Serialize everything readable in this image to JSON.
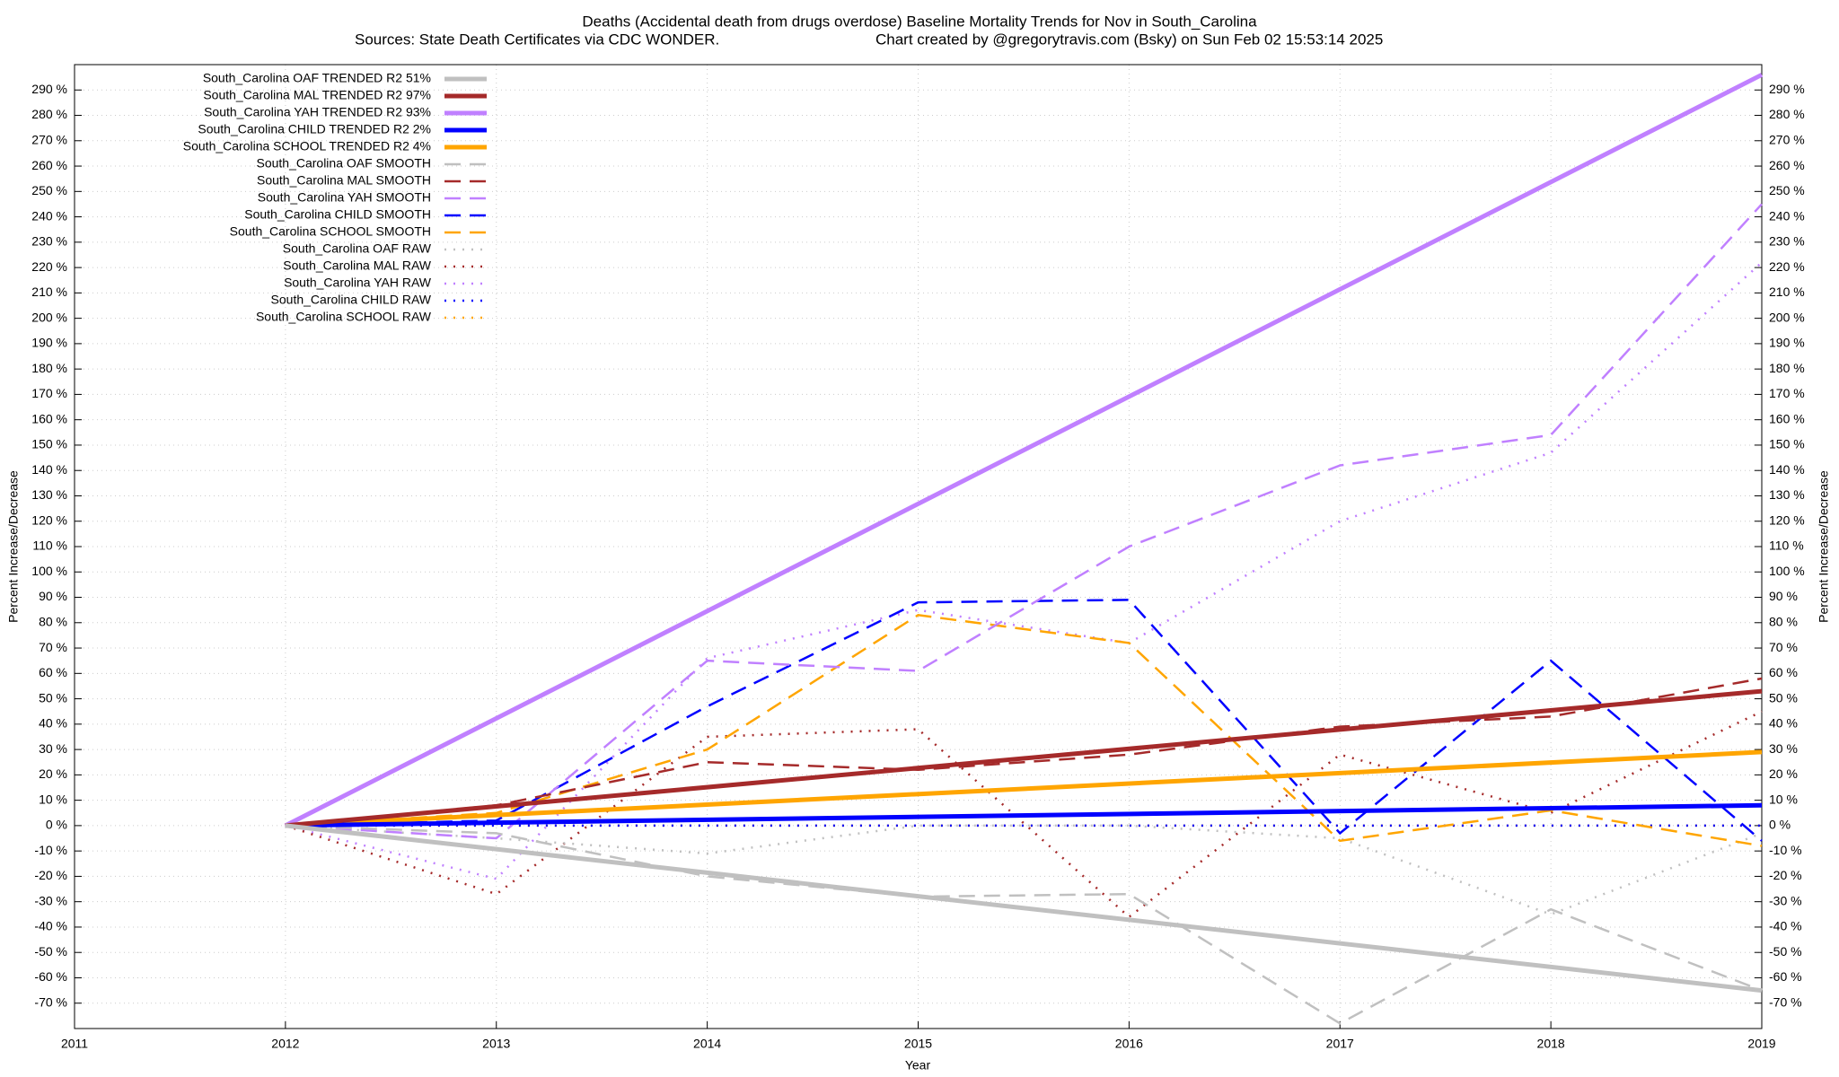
{
  "chart_data": {
    "type": "line",
    "title": "Deaths (Accidental death from drugs overdose)  Baseline Mortality Trends for Nov in South_Carolina",
    "subtitle": "Sources: State Death Certificates via CDC WONDER.",
    "credit": "Chart created by @gregorytravis.com (Bsky) on Sun Feb 02 15:53:14 2025",
    "xlabel": "Year",
    "ylabel": "Percent Increase/Decrease",
    "xlim": [
      2011,
      2019
    ],
    "xticks": [
      2011,
      2012,
      2013,
      2014,
      2015,
      2016,
      2017,
      2018,
      2019
    ],
    "ylim": [
      -80,
      300
    ],
    "yticks": [
      {
        "value": -70,
        "label": "-70 %"
      },
      {
        "value": -60,
        "label": "-60 %"
      },
      {
        "value": -50,
        "label": "-50 %"
      },
      {
        "value": -40,
        "label": "-40 %"
      },
      {
        "value": -30,
        "label": "-30 %"
      },
      {
        "value": -20,
        "label": "-20 %"
      },
      {
        "value": -10,
        "label": "-10 %"
      },
      {
        "value": 0,
        "label": "0 %"
      },
      {
        "value": 10,
        "label": "10 %"
      },
      {
        "value": 20,
        "label": "20 %"
      },
      {
        "value": 30,
        "label": "30 %"
      },
      {
        "value": 40,
        "label": "40 %"
      },
      {
        "value": 50,
        "label": "50 %"
      },
      {
        "value": 60,
        "label": "60 %"
      },
      {
        "value": 70,
        "label": "70 %"
      },
      {
        "value": 80,
        "label": "80 %"
      },
      {
        "value": 90,
        "label": "90 %"
      },
      {
        "value": 100,
        "label": "100 %"
      },
      {
        "value": 110,
        "label": "110 %"
      },
      {
        "value": 120,
        "label": "120 %"
      },
      {
        "value": 130,
        "label": "130 %"
      },
      {
        "value": 140,
        "label": "140 %"
      },
      {
        "value": 150,
        "label": "150 %"
      },
      {
        "value": 160,
        "label": "160 %"
      },
      {
        "value": 170,
        "label": "170 %"
      },
      {
        "value": 180,
        "label": "180 %"
      },
      {
        "value": 190,
        "label": "190 %"
      },
      {
        "value": 200,
        "label": "200 %"
      },
      {
        "value": 210,
        "label": "210 %"
      },
      {
        "value": 220,
        "label": "220 %"
      },
      {
        "value": 230,
        "label": "230 %"
      },
      {
        "value": 240,
        "label": "240 %"
      },
      {
        "value": 250,
        "label": "250 %"
      },
      {
        "value": 260,
        "label": "260 %"
      },
      {
        "value": 270,
        "label": "270 %"
      },
      {
        "value": 280,
        "label": "280 %"
      },
      {
        "value": 290,
        "label": "290 %"
      }
    ],
    "grid": true,
    "legend": "top-left",
    "series": [
      {
        "name": "South_Carolina OAF TRENDED R2  51%",
        "color": "#c0c0c0",
        "style": "solid",
        "x": [
          2012,
          2019
        ],
        "values": [
          0,
          -65
        ]
      },
      {
        "name": "South_Carolina MAL TRENDED R2  97%",
        "color": "#a52a2a",
        "style": "solid",
        "x": [
          2012,
          2019
        ],
        "values": [
          0,
          53
        ]
      },
      {
        "name": "South_Carolina YAH TRENDED R2  93%",
        "color": "#c080ff",
        "style": "solid",
        "x": [
          2012,
          2019
        ],
        "values": [
          0,
          296
        ]
      },
      {
        "name": "South_Carolina CHILD TRENDED R2   2%",
        "color": "#0000ff",
        "style": "solid",
        "x": [
          2012,
          2019
        ],
        "values": [
          0,
          8
        ]
      },
      {
        "name": "South_Carolina SCHOOL TRENDED R2   4%",
        "color": "#ffa500",
        "style": "solid",
        "x": [
          2012,
          2019
        ],
        "values": [
          0,
          29
        ]
      },
      {
        "name": "South_Carolina OAF SMOOTH",
        "color": "#c0c0c0",
        "style": "dashed",
        "x": [
          2012,
          2013,
          2014,
          2015,
          2016,
          2017,
          2018,
          2019
        ],
        "values": [
          0,
          -3,
          -20,
          -28,
          -27,
          -78,
          -33,
          -65
        ]
      },
      {
        "name": "South_Carolina MAL SMOOTH",
        "color": "#a52a2a",
        "style": "dashed",
        "x": [
          2012,
          2013,
          2014,
          2015,
          2016,
          2017,
          2018,
          2019
        ],
        "values": [
          0,
          8,
          25,
          22,
          28,
          39,
          43,
          58
        ]
      },
      {
        "name": "South_Carolina YAH SMOOTH",
        "color": "#c080ff",
        "style": "dashed",
        "x": [
          2012,
          2013,
          2014,
          2015,
          2016,
          2017,
          2018,
          2019
        ],
        "values": [
          0,
          -5,
          65,
          61,
          110,
          142,
          154,
          245
        ]
      },
      {
        "name": "South_Carolina CHILD SMOOTH",
        "color": "#0000ff",
        "style": "dashed",
        "x": [
          2012,
          2013,
          2014,
          2015,
          2016,
          2017,
          2018,
          2019
        ],
        "values": [
          0,
          2,
          47,
          88,
          89,
          -3,
          65,
          -6
        ]
      },
      {
        "name": "South_Carolina SCHOOL SMOOTH",
        "color": "#ffa500",
        "style": "dashed",
        "x": [
          2012,
          2013,
          2014,
          2015,
          2016,
          2017,
          2018,
          2019
        ],
        "values": [
          0,
          5,
          30,
          83,
          72,
          -6,
          6,
          -8
        ]
      },
      {
        "name": "South_Carolina OAF RAW",
        "color": "#c0c0c0",
        "style": "dotted",
        "x": [
          2012,
          2013,
          2014,
          2015,
          2016,
          2017,
          2018,
          2019
        ],
        "values": [
          0,
          -5,
          -11,
          0,
          0,
          -5,
          -35,
          -3
        ]
      },
      {
        "name": "South_Carolina MAL RAW",
        "color": "#a52a2a",
        "style": "dotted",
        "x": [
          2012,
          2013,
          2014,
          2015,
          2016,
          2017,
          2018,
          2019
        ],
        "values": [
          0,
          -27,
          35,
          38,
          -36,
          28,
          5,
          45
        ]
      },
      {
        "name": "South_Carolina YAH RAW",
        "color": "#c080ff",
        "style": "dotted",
        "x": [
          2012,
          2013,
          2014,
          2015,
          2016,
          2017,
          2018,
          2019
        ],
        "values": [
          0,
          -21,
          66,
          85,
          72,
          120,
          147,
          222
        ]
      },
      {
        "name": "South_Carolina CHILD RAW",
        "color": "#0000ff",
        "style": "dotted",
        "x": [
          2012,
          2013,
          2014,
          2015,
          2016,
          2017,
          2018,
          2019
        ],
        "values": [
          0,
          0,
          0,
          0,
          0,
          0,
          0,
          0
        ]
      },
      {
        "name": "South_Carolina SCHOOL RAW",
        "color": "#ffa500",
        "style": "dotted",
        "x": [
          2012,
          2013,
          2014,
          2015,
          2016,
          2017,
          2018,
          2019
        ],
        "values": [
          0,
          0,
          0,
          0,
          0,
          0,
          0,
          0
        ]
      }
    ]
  }
}
